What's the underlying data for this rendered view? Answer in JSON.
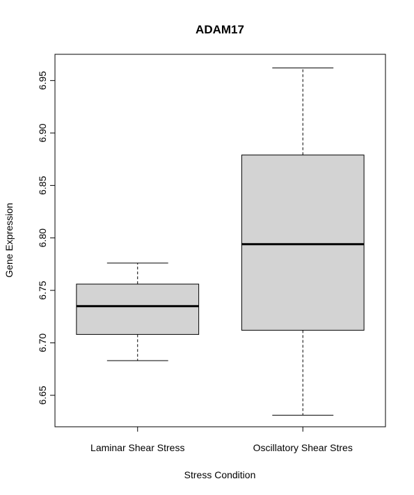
{
  "chart_data": {
    "type": "boxplot",
    "title": "ADAM17",
    "xlabel": "Stress Condition",
    "ylabel": "Gene Expression",
    "ylim": [
      6.62,
      6.975
    ],
    "yticks": [
      "6.65",
      "6.70",
      "6.75",
      "6.80",
      "6.85",
      "6.90",
      "6.95"
    ],
    "grid": false,
    "categories": [
      "Laminar Shear Stress",
      "Oscillatory Shear Stres"
    ],
    "boxes": [
      {
        "category": "Laminar Shear Stress",
        "whisker_low": 6.683,
        "q1": 6.708,
        "median": 6.735,
        "q3": 6.756,
        "whisker_high": 6.776
      },
      {
        "category": "Oscillatory Shear Stres",
        "whisker_low": 6.631,
        "q1": 6.712,
        "median": 6.794,
        "q3": 6.879,
        "whisker_high": 6.962
      }
    ],
    "colors": {
      "box_fill": "#d3d3d3",
      "stroke": "#000000"
    }
  }
}
